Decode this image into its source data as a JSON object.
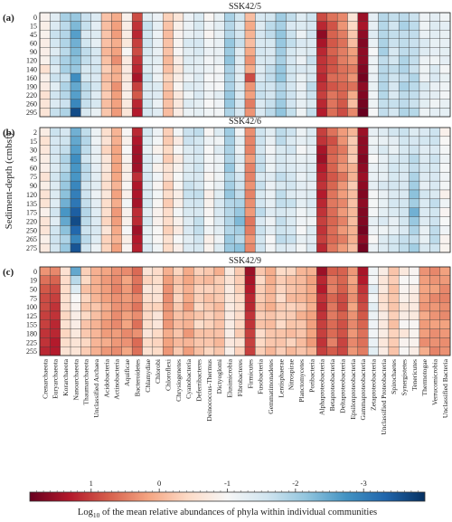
{
  "chart_data": {
    "type": "heatmap",
    "ylabel": "Sediment-depth (cmbsf)",
    "colorbar": {
      "label_prefix": "Log",
      "label_sub": "10",
      "label_suffix": " of the mean relative abundances of phyla within individual communities",
      "ticks": [
        "1",
        "0",
        "-1",
        "-2",
        "-3"
      ],
      "tick_values": [
        1,
        0,
        -1,
        -2,
        -3
      ],
      "range": [
        1.9,
        -3.9
      ],
      "colors": [
        "#67001f",
        "#b2182b",
        "#d6604d",
        "#f4a582",
        "#fddbc7",
        "#f7f7f7",
        "#d1e5f0",
        "#92c5de",
        "#4393c3",
        "#2166ac",
        "#053061"
      ]
    },
    "phyla": [
      "Crenarchaeota",
      "Euryarchaeota",
      "Korarchaeota",
      "Nanoarchaeota",
      "Thaumarchaeota",
      "Unclassified Archaea",
      "Acidobacteria",
      "Actinobacteria",
      "Aquificae",
      "Bacteroidetes",
      "Chlamydiae",
      "Chlorobi",
      "Chloroflexi",
      "Chrysiogenetes",
      "Cyanobacteria",
      "Deferribacteres",
      "Deinococcus-Thermus",
      "Dictyoglomi",
      "Elusimicrobia",
      "Fibrobacteres",
      "Firmicutes",
      "Fusobacteria",
      "Gemmatimonadetes",
      "Lentisphaerae",
      "Nitrospirae",
      "Planctomycetes",
      "Poribacteria",
      "Alphaproteobacteria",
      "Betaproteobacteria",
      "Deltaproteobacteria",
      "Epsilonproteobacteria",
      "Gammaproteobacteria",
      "Zetaproteobacteria",
      "Unclassified Proteobacteria",
      "Spirochaetes",
      "Synergistetes",
      "Tenericutes",
      "Thermotogae",
      "Verrucomicrobia",
      "Unclassified Bacteria"
    ],
    "panels": [
      {
        "letter": "(a)",
        "title": "SSK42/5",
        "depths": [
          "0",
          "15",
          "45",
          "60",
          "90",
          "120",
          "140",
          "160",
          "190",
          "220",
          "260",
          "295"
        ],
        "base": [
          -0.7,
          -1.5,
          -1.8,
          -2.5,
          -1.6,
          -1.4,
          -0.2,
          0.2,
          -0.8,
          1.1,
          -1.5,
          -1.3,
          -0.2,
          -0.8,
          -1.3,
          -1.4,
          -1.1,
          -1.2,
          -2.0,
          -1.5,
          0.3,
          -1.5,
          -1.6,
          -2.0,
          -1.6,
          -1.3,
          -1.6,
          1.2,
          0.7,
          0.5,
          -0.2,
          1.5,
          -1.2,
          -1.8,
          -1.6,
          -1.8,
          -1.8,
          -1.3,
          -1.3,
          -1.2
        ],
        "deviations": [
          {
            "phylum": "Alphaproteobacteria",
            "values": [
              0.9,
              1.2,
              1.6,
              1.4,
              1.2,
              1.1,
              1.1,
              1.2,
              1.1,
              1.0,
              1.2,
              1.3
            ]
          },
          {
            "phylum": "Gammaproteobacteria",
            "values": [
              1.5,
              1.4,
              1.6,
              1.7,
              1.6,
              1.6,
              1.7,
              1.8,
              1.6,
              1.7,
              1.8,
              1.9
            ]
          },
          {
            "phylum": "Firmicutes",
            "values": [
              -0.1,
              0.1,
              0.0,
              -0.1,
              0.1,
              0.3,
              0.1,
              0.9,
              0.3,
              0.2,
              0.5,
              0.3
            ]
          },
          {
            "phylum": "Nanoarchaeota",
            "values": [
              -2.1,
              -2.3,
              -2.6,
              -2.4,
              -2.3,
              -2.2,
              -2.1,
              -2.8,
              -2.5,
              -2.6,
              -2.9,
              -3.6
            ]
          },
          {
            "phylum": "Bacteroidetes",
            "values": [
              0.9,
              1.1,
              1.2,
              1.0,
              0.9,
              1.1,
              1.2,
              1.4,
              1.0,
              0.8,
              1.2,
              1.3
            ]
          },
          {
            "phylum": "Epsilonproteobacteria",
            "values": [
              -0.6,
              -0.4,
              -0.2,
              -0.1,
              0.2,
              0.3,
              0.5,
              0.3,
              0.6,
              0.1,
              -0.1,
              0.4
            ]
          },
          {
            "phylum": "Deltaproteobacteria",
            "values": [
              0.4,
              0.3,
              0.5,
              0.6,
              0.5,
              0.5,
              0.6,
              0.6,
              0.7,
              0.7,
              0.8,
              0.9
            ]
          }
        ]
      },
      {
        "letter": "(b)",
        "title": "SSK42/6",
        "depths": [
          "2",
          "15",
          "30",
          "45",
          "60",
          "75",
          "90",
          "120",
          "135",
          "175",
          "220",
          "250",
          "265",
          "275"
        ],
        "base": [
          -0.7,
          -1.5,
          -1.6,
          -2.6,
          -1.7,
          -1.3,
          -0.5,
          0.1,
          -0.9,
          1.3,
          -1.4,
          -1.0,
          -0.4,
          -0.9,
          -1.5,
          -1.6,
          -1.0,
          -1.3,
          -2.0,
          -1.4,
          0.4,
          -1.6,
          -1.2,
          -1.6,
          -1.5,
          -1.2,
          -1.3,
          1.2,
          0.7,
          0.4,
          -0.1,
          1.6,
          -1.1,
          -1.3,
          -1.4,
          -1.6,
          -1.5,
          -1.4,
          -1.6,
          -1.0
        ],
        "deviations": [
          {
            "phylum": "Nanoarchaeota",
            "values": [
              -2.4,
              -2.5,
              -2.6,
              -2.8,
              -2.7,
              -2.7,
              -2.9,
              -3.0,
              -3.1,
              -3.4,
              -3.6,
              -3.3,
              -2.9,
              -3.5
            ]
          },
          {
            "phylum": "Fibrobacteres",
            "values": [
              -1.1,
              -1.3,
              -1.2,
              -1.4,
              -1.3,
              -1.5,
              -1.6,
              -1.7,
              -1.9,
              -2.1,
              -2.3,
              -2.0,
              -1.8,
              -2.2
            ]
          },
          {
            "phylum": "Alphaproteobacteria",
            "values": [
              1.0,
              1.1,
              1.4,
              1.5,
              1.3,
              1.2,
              1.1,
              1.3,
              1.2,
              1.1,
              1.0,
              1.1,
              1.0,
              1.2
            ]
          },
          {
            "phylum": "Gammaproteobacteria",
            "values": [
              1.5,
              1.6,
              1.6,
              1.7,
              1.6,
              1.5,
              1.6,
              1.7,
              1.6,
              1.7,
              1.7,
              1.8,
              1.6,
              1.8
            ]
          },
          {
            "phylum": "Tenericutes",
            "values": [
              -1.4,
              -1.5,
              -1.6,
              -1.8,
              -1.7,
              -1.9,
              -2.0,
              -2.2,
              -2.0,
              -2.4,
              -2.1,
              -1.9,
              -1.7,
              -2.0
            ]
          },
          {
            "phylum": "Korarchaeota",
            "values": [
              -1.5,
              -1.6,
              -1.7,
              -1.9,
              -1.8,
              -2.0,
              -2.1,
              -2.2,
              -2.4,
              -2.7,
              -2.5,
              -2.2,
              -1.9,
              -2.1
            ]
          }
        ]
      },
      {
        "letter": "(c)",
        "title": "SSK42/9",
        "depths": [
          "0",
          "19",
          "50",
          "75",
          "100",
          "125",
          "155",
          "180",
          "225",
          "255"
        ],
        "base": [
          0.6,
          0.7,
          -0.4,
          -2.0,
          -0.3,
          -0.1,
          0.2,
          0.3,
          0.3,
          0.5,
          -0.5,
          -0.5,
          0.2,
          -0.2,
          0.1,
          -0.3,
          -0.2,
          -0.1,
          -0.7,
          -0.4,
          1.3,
          -0.3,
          -0.1,
          -0.3,
          -0.2,
          -0.1,
          0.1,
          1.2,
          0.6,
          0.8,
          0.3,
          1.1,
          -1.2,
          -0.6,
          -0.2,
          -0.8,
          -0.8,
          0.2,
          0.3,
          0.3
        ],
        "deviations": [
          {
            "phylum": "Crenarchaeota",
            "values": [
              0.3,
              0.6,
              0.8,
              0.9,
              0.9,
              1.0,
              1.0,
              1.1,
              1.1,
              1.2
            ]
          },
          {
            "phylum": "Euryarchaeota",
            "values": [
              0.4,
              0.7,
              0.9,
              1.0,
              1.1,
              1.1,
              1.2,
              1.2,
              1.3,
              1.3
            ]
          },
          {
            "phylum": "Gammaproteobacteria",
            "values": [
              1.4,
              1.3,
              1.1,
              1.0,
              0.9,
              0.8,
              0.7,
              0.6,
              0.6,
              0.5
            ]
          },
          {
            "phylum": "Firmicutes",
            "values": [
              1.5,
              1.4,
              1.3,
              1.2,
              1.2,
              1.1,
              1.1,
              1.0,
              1.0,
              1.0
            ]
          },
          {
            "phylum": "Alphaproteobacteria",
            "values": [
              1.5,
              1.2,
              1.3,
              1.1,
              1.2,
              1.1,
              1.0,
              1.0,
              1.1,
              1.0
            ]
          },
          {
            "phylum": "Nanoarchaeota",
            "values": [
              -2.5,
              -1.8,
              -1.4,
              -1.0,
              -0.9,
              -0.8,
              -0.8,
              -0.7,
              -0.6,
              -0.6
            ]
          }
        ]
      }
    ]
  }
}
